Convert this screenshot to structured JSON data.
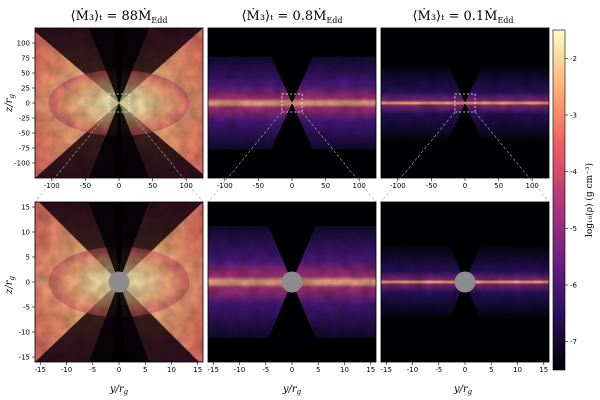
{
  "titles": [
    {
      "main": "⟨Ṁ₃⟩ₜ = 88Ṁ",
      "sub": "Edd"
    },
    {
      "main": "⟨Ṁ₃⟩ₜ = 0.8Ṁ",
      "sub": "Edd"
    },
    {
      "main": "⟨Ṁ₃⟩ₜ = 0.1Ṁ",
      "sub": "Edd"
    }
  ],
  "chart_data": {
    "type": "heatmap",
    "xlabel": "y/r_g",
    "ylabel": "z/r_g",
    "colorbar": {
      "label": "log₁₀(ρ) (g cm⁻³)",
      "range": [
        -7.5,
        -1.5
      ],
      "ticks": [
        "-2",
        "-3",
        "-4",
        "-5",
        "-6",
        "-7"
      ],
      "tick_values": [
        -2,
        -3,
        -4,
        -5,
        -6,
        -7
      ],
      "colormap": [
        "#000004",
        "#2c115f",
        "#721f81",
        "#b73779",
        "#f1605d",
        "#feb078",
        "#fcfdbf"
      ]
    },
    "panels": [
      {
        "row": "top",
        "accretion": "88",
        "xlim": [
          -125,
          125
        ],
        "ylim": [
          -125,
          125
        ],
        "xticks": [
          "-100",
          "-50",
          "0",
          "50",
          "100"
        ],
        "yticks": [
          "100",
          "75",
          "50",
          "25",
          "0",
          "-25",
          "-50",
          "-75",
          "-100"
        ],
        "zoom_box": [
          -15,
          15,
          -15,
          15
        ]
      },
      {
        "row": "top",
        "accretion": "0.8",
        "xlim": [
          -125,
          125
        ],
        "ylim": [
          -125,
          125
        ],
        "xticks": [
          "-100",
          "-50",
          "0",
          "50",
          "100"
        ],
        "zoom_box": [
          -15,
          15,
          -15,
          15
        ]
      },
      {
        "row": "top",
        "accretion": "0.1",
        "xlim": [
          -125,
          125
        ],
        "ylim": [
          -125,
          125
        ],
        "xticks": [
          "-100",
          "-50",
          "0",
          "50",
          "100"
        ],
        "zoom_box": [
          -15,
          15,
          -15,
          15
        ]
      },
      {
        "row": "bottom",
        "accretion": "88",
        "xlim": [
          -16,
          16
        ],
        "ylim": [
          -16,
          16
        ],
        "xticks": [
          "-15",
          "-10",
          "-5",
          "0",
          "5",
          "10",
          "15"
        ],
        "yticks": [
          "15",
          "10",
          "5",
          "0",
          "-5",
          "-10",
          "-15"
        ],
        "black_hole_radius": 2
      },
      {
        "row": "bottom",
        "accretion": "0.8",
        "xlim": [
          -16,
          16
        ],
        "ylim": [
          -16,
          16
        ],
        "xticks": [
          "-15",
          "-10",
          "-5",
          "0",
          "5",
          "10",
          "15"
        ],
        "black_hole_radius": 2
      },
      {
        "row": "bottom",
        "accretion": "0.1",
        "xlim": [
          -16,
          16
        ],
        "ylim": [
          -16,
          16
        ],
        "xticks": [
          "-15",
          "-10",
          "-5",
          "0",
          "5",
          "10",
          "15"
        ],
        "black_hole_radius": 2
      }
    ]
  }
}
